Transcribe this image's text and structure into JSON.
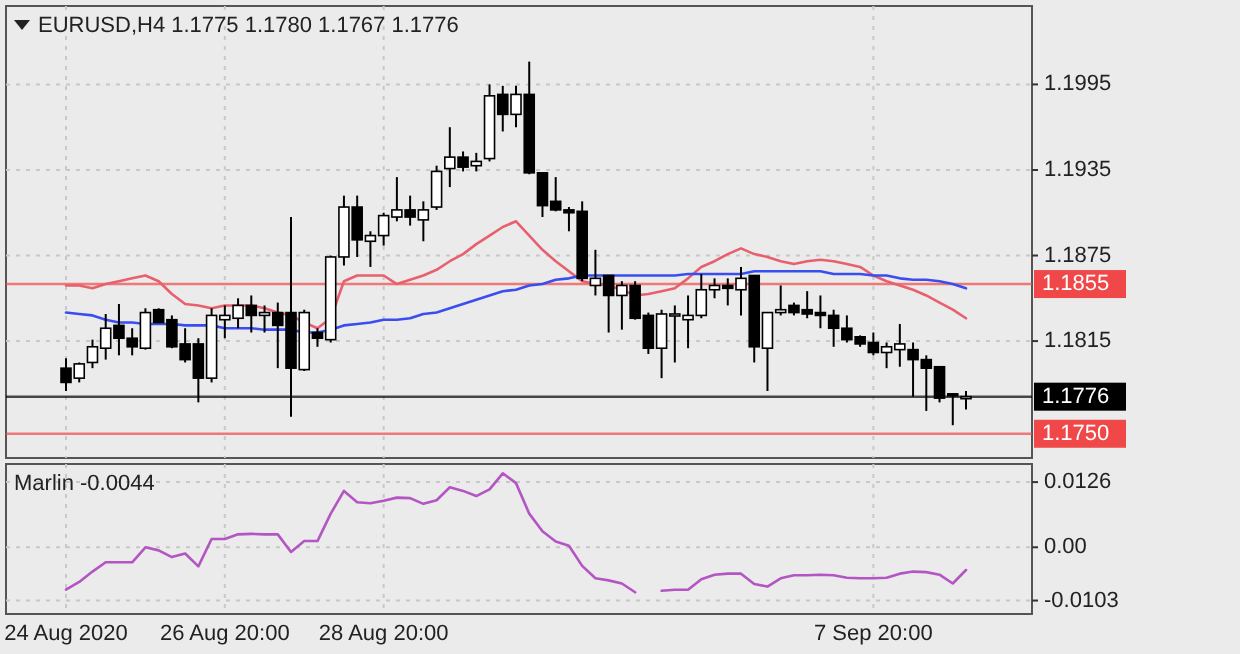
{
  "chart_data": [
    {
      "type": "candlestick",
      "title": "EURUSD,H4 1.1775 1.1780 1.1767 1.1776",
      "tick_labels": "y",
      "grid": true,
      "categories": [
        null,
        null,
        null,
        null,
        null,
        null,
        null,
        null,
        null,
        null,
        null,
        null,
        null,
        null,
        null,
        null,
        null,
        null,
        null,
        null,
        null,
        null,
        null,
        null,
        null,
        null,
        null,
        null,
        null,
        null,
        null,
        null,
        null,
        null,
        null,
        null,
        null,
        null,
        null,
        null,
        null,
        null,
        null,
        null,
        null,
        null,
        null,
        null,
        null,
        null,
        null,
        null,
        null,
        null,
        null,
        null,
        null,
        null,
        null,
        null,
        null,
        null,
        null,
        null,
        null,
        null,
        null,
        null,
        null
      ],
      "ohlc": [
        [
          1.1796,
          1.1803,
          1.178,
          1.1786
        ],
        [
          1.1789,
          1.18,
          1.1786,
          1.1799
        ],
        [
          1.18,
          1.1816,
          1.1796,
          1.1811
        ],
        [
          1.181,
          1.1834,
          1.1802,
          1.1824
        ],
        [
          1.1826,
          1.1841,
          1.1805,
          1.1817
        ],
        [
          1.1817,
          1.1824,
          1.1805,
          1.1811
        ],
        [
          1.181,
          1.1838,
          1.1809,
          1.1835
        ],
        [
          1.1837,
          1.1838,
          1.1828,
          1.1828
        ],
        [
          1.183,
          1.1833,
          1.181,
          1.1811
        ],
        [
          1.1813,
          1.1824,
          1.18,
          1.1802
        ],
        [
          1.1813,
          1.1817,
          1.1772,
          1.1789
        ],
        [
          1.1789,
          1.1838,
          1.1786,
          1.1833
        ],
        [
          1.183,
          1.184,
          1.1817,
          1.1833
        ],
        [
          1.1831,
          1.1845,
          1.1824,
          1.184
        ],
        [
          1.184,
          1.1847,
          1.1821,
          1.1833
        ],
        [
          1.1833,
          1.184,
          1.1821,
          1.1835
        ],
        [
          1.1835,
          1.1842,
          1.1796,
          1.1826
        ],
        [
          1.1835,
          1.1902,
          1.1762,
          1.1796
        ],
        [
          1.1795,
          1.1837,
          1.1794,
          1.1835
        ],
        [
          1.1821,
          1.1824,
          1.1811,
          1.1817
        ],
        [
          1.1816,
          1.1875,
          1.1814,
          1.1874
        ],
        [
          1.1874,
          1.1917,
          1.1868,
          1.1909
        ],
        [
          1.1909,
          1.1917,
          1.1874,
          1.1886
        ],
        [
          1.1885,
          1.1892,
          1.1867,
          1.1889
        ],
        [
          1.1889,
          1.1905,
          1.1882,
          1.1903
        ],
        [
          1.1902,
          1.193,
          1.1899,
          1.1907
        ],
        [
          1.1907,
          1.1917,
          1.1896,
          1.1902
        ],
        [
          1.19,
          1.1913,
          1.1885,
          1.1907
        ],
        [
          1.1909,
          1.1938,
          1.1907,
          1.1934
        ],
        [
          1.1936,
          1.1965,
          1.1923,
          1.1944
        ],
        [
          1.1944,
          1.1948,
          1.1934,
          1.1937
        ],
        [
          1.1938,
          1.1947,
          1.1934,
          1.1941
        ],
        [
          1.1943,
          1.1995,
          1.1941,
          1.1987
        ],
        [
          1.1988,
          1.1994,
          1.1962,
          1.1974
        ],
        [
          1.1974,
          1.1994,
          1.1965,
          1.1988
        ],
        [
          1.1988,
          1.2011,
          1.1932,
          1.1933
        ],
        [
          1.1933,
          1.1933,
          1.1902,
          1.191
        ],
        [
          1.1913,
          1.193,
          1.1906,
          1.1907
        ],
        [
          1.1907,
          1.1909,
          1.1892,
          1.1905
        ],
        [
          1.1906,
          1.1913,
          1.1857,
          1.1859
        ],
        [
          1.1854,
          1.1879,
          1.1847,
          1.1859
        ],
        [
          1.1861,
          1.1861,
          1.1821,
          1.1847
        ],
        [
          1.1847,
          1.1857,
          1.1823,
          1.1854
        ],
        [
          1.1854,
          1.1857,
          1.183,
          1.1831
        ],
        [
          1.1833,
          1.1835,
          1.1806,
          1.181
        ],
        [
          1.181,
          1.1837,
          1.1789,
          1.1834
        ],
        [
          1.1833,
          1.184,
          1.18,
          1.1834
        ],
        [
          1.183,
          1.1847,
          1.181,
          1.1833
        ],
        [
          1.1833,
          1.1862,
          1.1831,
          1.1851
        ],
        [
          1.1851,
          1.1859,
          1.1845,
          1.1854
        ],
        [
          1.1854,
          1.1859,
          1.184,
          1.1852
        ],
        [
          1.1851,
          1.1867,
          1.1833,
          1.1859
        ],
        [
          1.1861,
          1.1861,
          1.18,
          1.1811
        ],
        [
          1.181,
          1.1835,
          1.178,
          1.1835
        ],
        [
          1.1835,
          1.1854,
          1.1833,
          1.1837
        ],
        [
          1.184,
          1.1842,
          1.1833,
          1.1835
        ],
        [
          1.1837,
          1.185,
          1.1831,
          1.1834
        ],
        [
          1.1835,
          1.1847,
          1.1824,
          1.1833
        ],
        [
          1.1833,
          1.1837,
          1.1811,
          1.1824
        ],
        [
          1.1824,
          1.1833,
          1.1814,
          1.1816
        ],
        [
          1.1818,
          1.1819,
          1.1811,
          1.1813
        ],
        [
          1.1814,
          1.1821,
          1.1805,
          1.1807
        ],
        [
          1.1807,
          1.1814,
          1.1796,
          1.1811
        ],
        [
          1.1809,
          1.1827,
          1.1797,
          1.1813
        ],
        [
          1.1809,
          1.1814,
          1.1776,
          1.1802
        ],
        [
          1.1802,
          1.1805,
          1.1766,
          1.1796
        ],
        [
          1.1797,
          1.1797,
          1.1772,
          1.1775
        ],
        [
          1.1778,
          1.1778,
          1.1756,
          1.1777
        ],
        [
          1.1775,
          1.178,
          1.1767,
          1.1776
        ]
      ],
      "series": [
        {
          "type": "line",
          "color": "#e8606e",
          "values": [
            1.1854,
            1.1854,
            1.1852,
            1.1855,
            1.1857,
            1.1859,
            1.1861,
            1.1857,
            1.1848,
            1.1841,
            1.184,
            1.1838,
            1.184,
            1.184,
            1.184,
            1.1838,
            1.1835,
            1.1833,
            1.1828,
            1.1824,
            1.1831,
            1.1857,
            1.1861,
            1.1861,
            1.1861,
            1.1855,
            1.1858,
            1.1861,
            1.1865,
            1.1871,
            1.1876,
            1.1883,
            1.1889,
            1.1895,
            1.1899,
            1.1889,
            1.1879,
            1.1871,
            1.1864,
            1.1857,
            1.1855,
            1.1854,
            1.1851,
            1.1847,
            1.1848,
            1.185,
            1.1852,
            1.1859,
            1.1867,
            1.1871,
            1.1876,
            1.188,
            1.1876,
            1.1874,
            1.1871,
            1.1869,
            1.1871,
            1.1872,
            1.1871,
            1.1869,
            1.1867,
            1.1861,
            1.1857,
            1.1854,
            1.1851,
            1.1847,
            1.1842,
            1.1837,
            1.1831
          ]
        },
        {
          "type": "line",
          "color": "#3a4ef0",
          "values": [
            1.1835,
            1.1834,
            1.1833,
            1.183,
            1.1828,
            1.1828,
            1.1827,
            1.1827,
            1.1827,
            1.1826,
            1.1826,
            1.1826,
            1.1824,
            1.1824,
            1.1824,
            1.1823,
            1.1823,
            1.1823,
            1.1821,
            1.1821,
            1.1823,
            1.1826,
            1.1827,
            1.1828,
            1.183,
            1.183,
            1.1831,
            1.1834,
            1.1835,
            1.1838,
            1.1841,
            1.1844,
            1.1847,
            1.185,
            1.1851,
            1.1854,
            1.1855,
            1.1858,
            1.1859,
            1.1861,
            1.1861,
            1.1861,
            1.1861,
            1.1861,
            1.1861,
            1.1861,
            1.1861,
            1.1862,
            1.1862,
            1.1862,
            1.1862,
            1.1862,
            1.1864,
            1.1864,
            1.1864,
            1.1864,
            1.1864,
            1.1864,
            1.1862,
            1.1862,
            1.1862,
            1.1861,
            1.1861,
            1.1859,
            1.1858,
            1.1858,
            1.1857,
            1.1855,
            1.1852
          ]
        }
      ],
      "ylim": [
        1.1733,
        1.205
      ],
      "yticks": [
        1.1815,
        1.1875,
        1.1935,
        1.1995
      ],
      "ref_lines": [
        {
          "axis": "y",
          "value": 1.1855,
          "label": "1.1855",
          "color": "#f04848"
        },
        {
          "axis": "y",
          "value": 1.175,
          "label": "1.1750",
          "color": "#f04848"
        },
        {
          "axis": "y",
          "value": 1.1776,
          "label": "1.1776",
          "color": "#000000"
        }
      ]
    },
    {
      "type": "line",
      "title": "Marlin -0.0044",
      "grid": true,
      "categories": [
        "24 Aug 2020",
        null,
        null,
        null,
        null,
        null,
        null,
        null,
        null,
        null,
        null,
        null,
        "26 Aug 20:00",
        null,
        null,
        null,
        null,
        null,
        null,
        null,
        null,
        null,
        null,
        null,
        "28 Aug 20:00",
        null,
        null,
        null,
        null,
        null,
        null,
        null,
        null,
        null,
        null,
        null,
        null,
        null,
        null,
        null,
        null,
        null,
        null,
        null,
        null,
        null,
        null,
        null,
        null,
        null,
        null,
        null,
        null,
        null,
        null,
        null,
        null,
        null,
        null,
        null,
        null,
        "7 Sep 20:00",
        null,
        null,
        null,
        null,
        null,
        null,
        null
      ],
      "series": [
        {
          "color": "#b455c4",
          "values": [
            -0.0082,
            -0.0067,
            -0.0047,
            -0.0029,
            -0.0029,
            -0.0029,
            0,
            -0.0006,
            -0.0019,
            -0.0012,
            -0.0037,
            0.0016,
            0.0016,
            0.0025,
            0.0026,
            0.0025,
            0.0025,
            -0.0009,
            0.0012,
            0.0012,
            0.0065,
            0.0109,
            0.0087,
            0.0085,
            0.009,
            0.0096,
            0.0095,
            0.0084,
            0.0091,
            0.0116,
            0.0109,
            0.0099,
            0.0112,
            0.0143,
            0.0124,
            0.0065,
            0.0031,
            0.0011,
            0.0003,
            -0.0036,
            -0.006,
            -0.0064,
            -0.007,
            -0.0087,
            null,
            -0.0084,
            -0.0082,
            -0.0082,
            -0.0062,
            -0.0053,
            -0.0051,
            -0.0051,
            -0.0071,
            -0.0076,
            -0.006,
            -0.0054,
            -0.0054,
            -0.0053,
            -0.0054,
            -0.0059,
            -0.006,
            -0.006,
            -0.0059,
            -0.0051,
            -0.0047,
            -0.0048,
            -0.0053,
            -0.007,
            -0.0044
          ]
        }
      ],
      "ylim": [
        -0.0129,
        0.0161
      ],
      "yticks": [
        0.0126,
        {
          "value": 0,
          "label": "0.00"
        },
        -0.0103
      ]
    }
  ]
}
